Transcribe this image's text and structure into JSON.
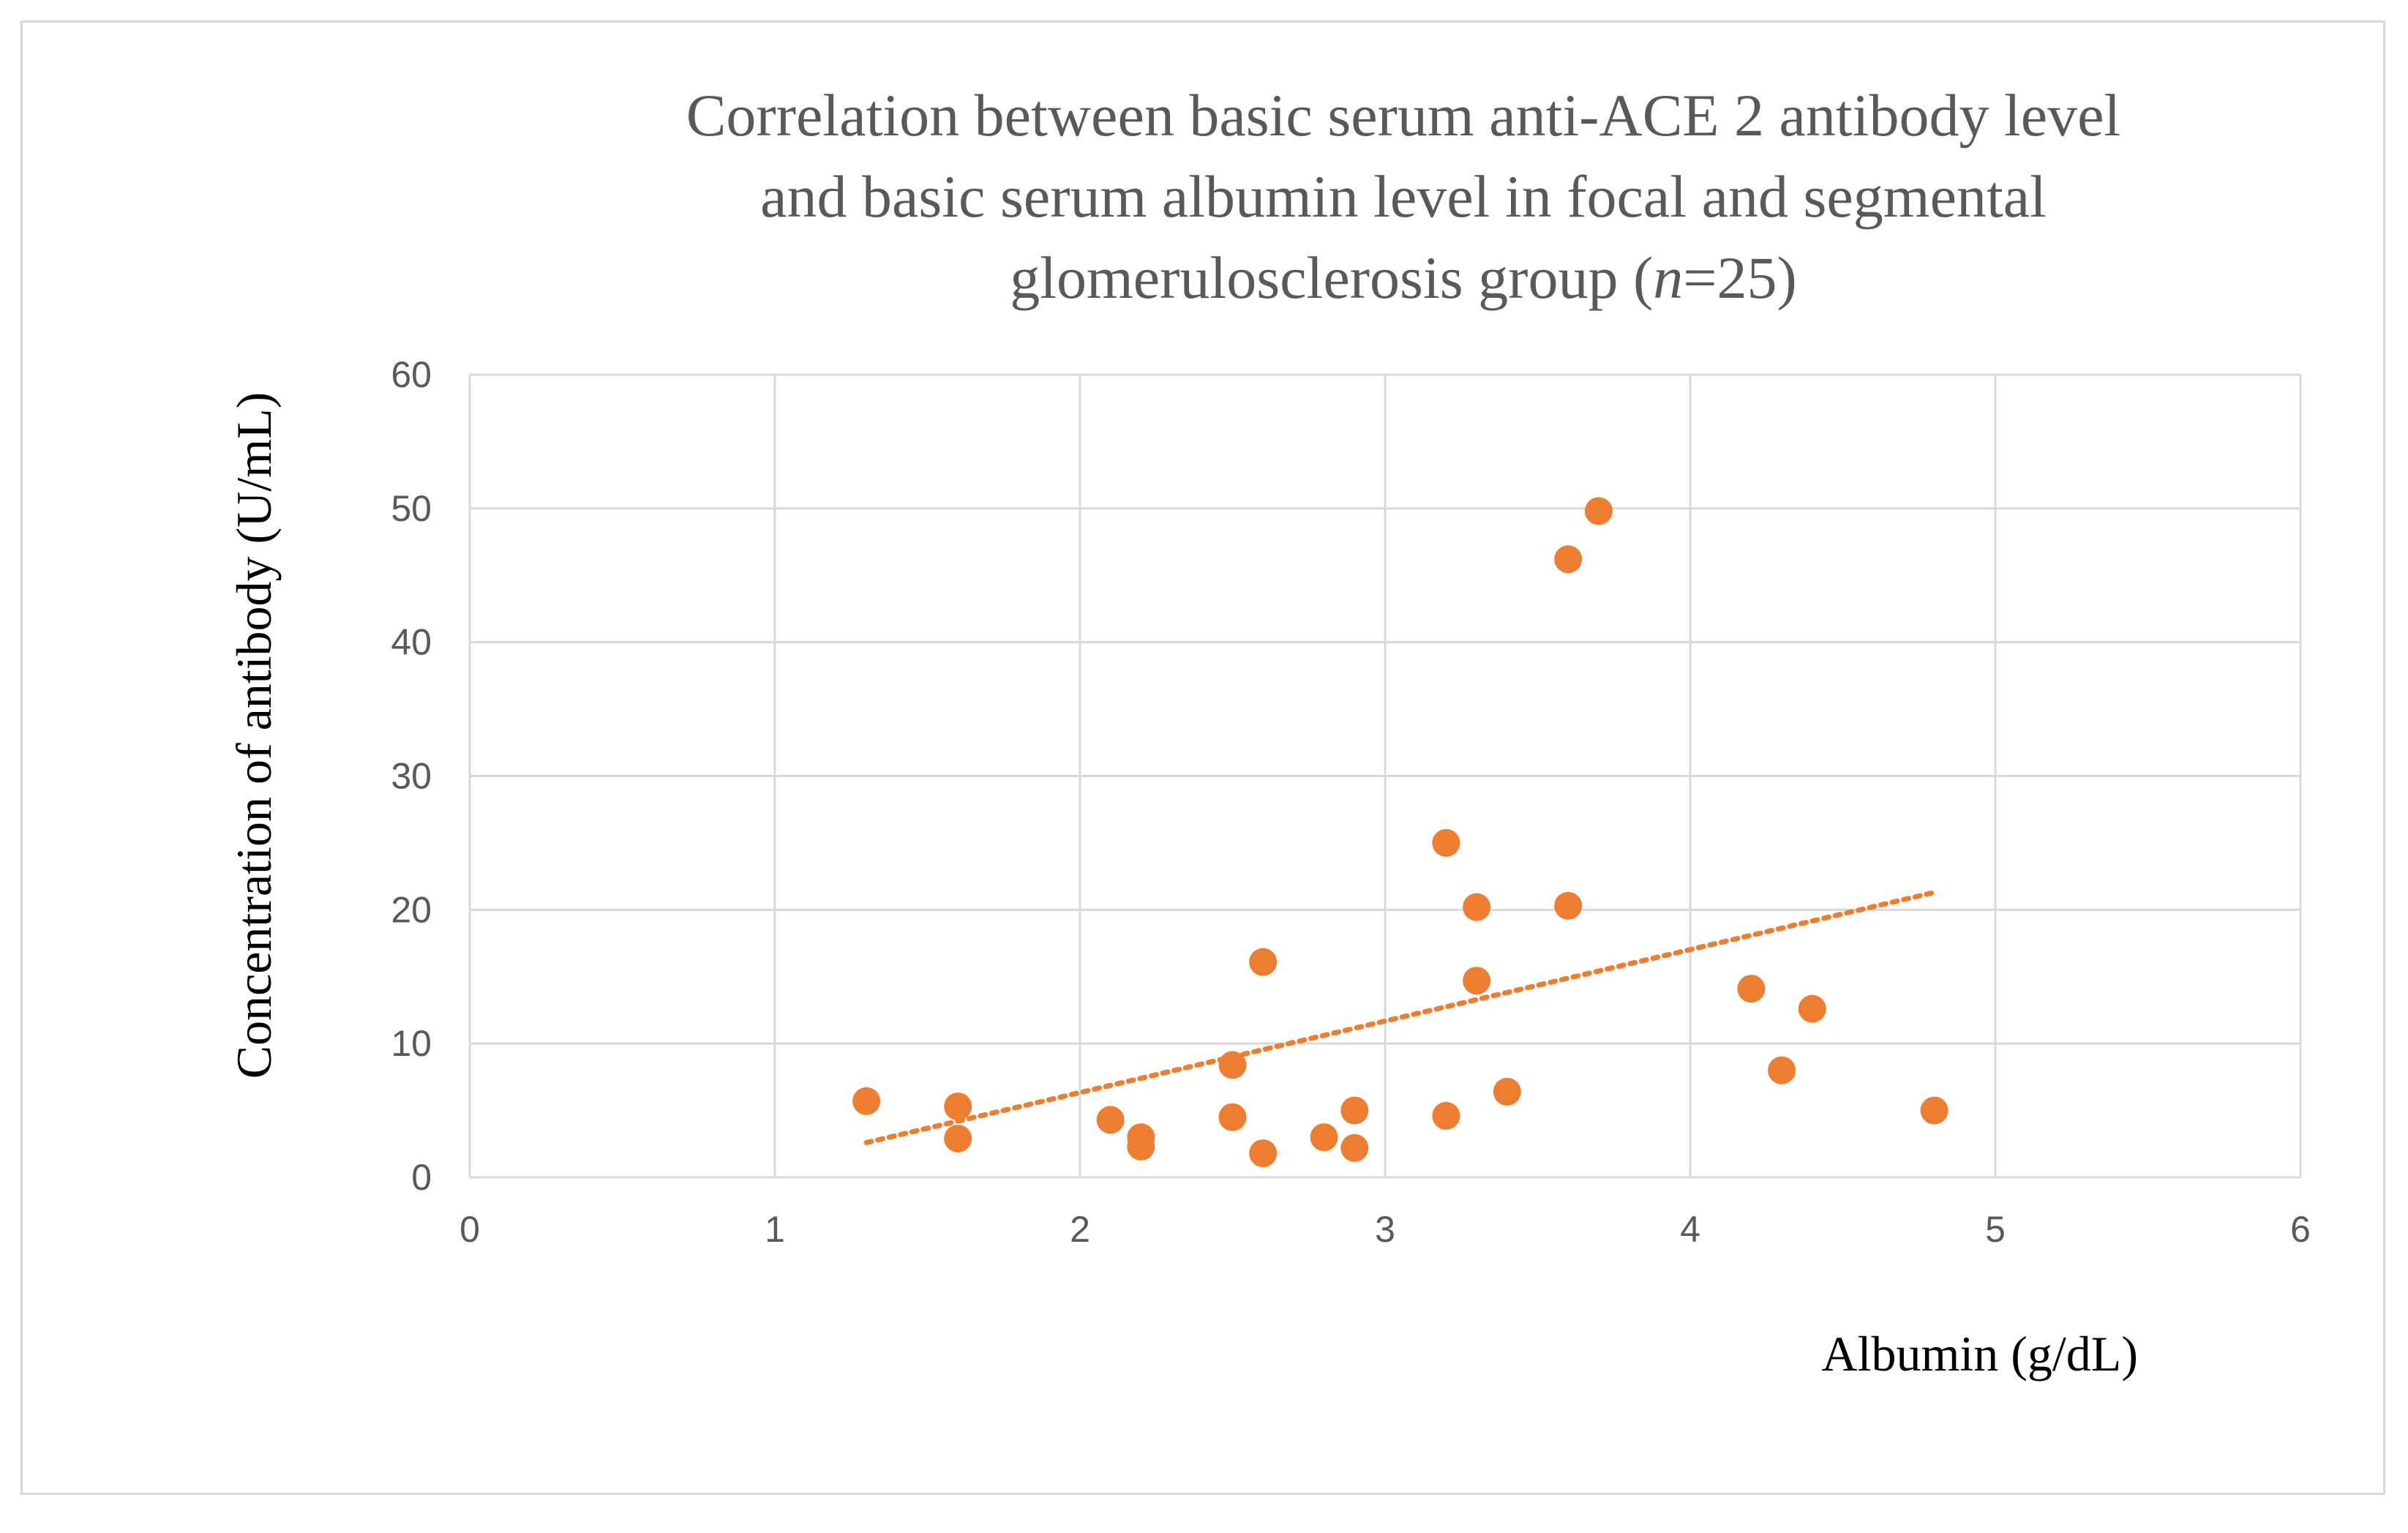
{
  "chart_data": {
    "type": "scatter",
    "title_lines": [
      "Correlation between basic serum anti-ACE 2 antibody level",
      "and basic serum albumin level in focal and segmental"
    ],
    "title_line3_prefix": "glomerulosclerosis group (",
    "title_line3_italic": "n",
    "title_line3_suffix": "=25)",
    "xlabel": "Albumin (g/dL)",
    "ylabel": "Concentration of antibody (U/mL)",
    "xlim": [
      0,
      6
    ],
    "ylim": [
      0,
      60
    ],
    "x_ticks": [
      "0",
      "1",
      "2",
      "3",
      "4",
      "5",
      "6"
    ],
    "y_ticks": [
      "0",
      "10",
      "20",
      "30",
      "40",
      "50",
      "60"
    ],
    "grid": true,
    "series": [
      {
        "name": "Anti-ACE 2 antibody",
        "color": "#ED7D31",
        "points": [
          {
            "x": 1.3,
            "y": 5.7
          },
          {
            "x": 1.6,
            "y": 5.3
          },
          {
            "x": 1.6,
            "y": 2.9
          },
          {
            "x": 2.1,
            "y": 4.3
          },
          {
            "x": 2.2,
            "y": 3.0
          },
          {
            "x": 2.2,
            "y": 2.3
          },
          {
            "x": 2.5,
            "y": 8.4
          },
          {
            "x": 2.5,
            "y": 4.5
          },
          {
            "x": 2.6,
            "y": 16.1
          },
          {
            "x": 2.6,
            "y": 1.8
          },
          {
            "x": 2.8,
            "y": 3.0
          },
          {
            "x": 2.9,
            "y": 5.0
          },
          {
            "x": 2.9,
            "y": 2.2
          },
          {
            "x": 3.2,
            "y": 25.0
          },
          {
            "x": 3.2,
            "y": 4.6
          },
          {
            "x": 3.3,
            "y": 20.2
          },
          {
            "x": 3.3,
            "y": 14.7
          },
          {
            "x": 3.4,
            "y": 6.4
          },
          {
            "x": 3.6,
            "y": 46.2
          },
          {
            "x": 3.6,
            "y": 20.3
          },
          {
            "x": 3.7,
            "y": 49.8
          },
          {
            "x": 4.2,
            "y": 14.1
          },
          {
            "x": 4.3,
            "y": 8.0
          },
          {
            "x": 4.4,
            "y": 12.6
          },
          {
            "x": 4.8,
            "y": 5.0
          }
        ]
      }
    ],
    "trendline": {
      "type": "linear",
      "style": "dotted",
      "color": "#ED7D31",
      "x_start": 1.3,
      "y_start": 2.6,
      "x_end": 4.8,
      "y_end": 21.3
    }
  }
}
